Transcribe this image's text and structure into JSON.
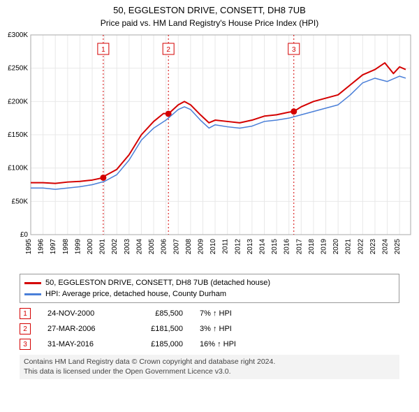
{
  "header": {
    "title": "50, EGGLESTON DRIVE, CONSETT, DH8 7UB",
    "subtitle": "Price paid vs. HM Land Registry's House Price Index (HPI)"
  },
  "chart": {
    "background_color": "#ffffff",
    "grid_color": "#e8e8e8",
    "border_color": "#aaaaaa",
    "axis_font_size": 10,
    "tick_font_size": 10,
    "xlim": [
      1995,
      2025.9
    ],
    "ylim": [
      0,
      300000
    ],
    "yticks": [
      0,
      50000,
      100000,
      150000,
      200000,
      250000,
      300000
    ],
    "ytick_labels": [
      "£0",
      "£50K",
      "£100K",
      "£150K",
      "£200K",
      "£250K",
      "£300K"
    ],
    "xticks": [
      1995,
      1996,
      1997,
      1998,
      1999,
      2000,
      2001,
      2002,
      2003,
      2004,
      2005,
      2006,
      2007,
      2008,
      2009,
      2010,
      2011,
      2012,
      2013,
      2014,
      2015,
      2016,
      2017,
      2018,
      2019,
      2020,
      2021,
      2022,
      2023,
      2024,
      2025
    ],
    "series": [
      {
        "name": "price_paid",
        "color": "#d40000",
        "width": 2,
        "data": [
          [
            1995,
            78000
          ],
          [
            1996,
            78000
          ],
          [
            1997,
            77000
          ],
          [
            1998,
            79000
          ],
          [
            1999,
            80000
          ],
          [
            2000,
            82000
          ],
          [
            2000.9,
            85500
          ],
          [
            2001,
            88000
          ],
          [
            2002,
            98000
          ],
          [
            2003,
            120000
          ],
          [
            2004,
            150000
          ],
          [
            2005,
            170000
          ],
          [
            2005.8,
            182000
          ],
          [
            2006.2,
            181500
          ],
          [
            2007,
            195000
          ],
          [
            2007.5,
            200000
          ],
          [
            2008,
            195000
          ],
          [
            2008.8,
            180000
          ],
          [
            2009.5,
            168000
          ],
          [
            2010,
            172000
          ],
          [
            2011,
            170000
          ],
          [
            2012,
            168000
          ],
          [
            2013,
            172000
          ],
          [
            2014,
            178000
          ],
          [
            2015,
            180000
          ],
          [
            2016,
            184000
          ],
          [
            2016.4,
            185000
          ],
          [
            2017,
            192000
          ],
          [
            2018,
            200000
          ],
          [
            2019,
            205000
          ],
          [
            2020,
            210000
          ],
          [
            2021,
            225000
          ],
          [
            2022,
            240000
          ],
          [
            2023,
            248000
          ],
          [
            2023.8,
            258000
          ],
          [
            2024.5,
            242000
          ],
          [
            2025,
            252000
          ],
          [
            2025.5,
            248000
          ]
        ]
      },
      {
        "name": "hpi",
        "color": "#4a7fd8",
        "width": 1.5,
        "data": [
          [
            1995,
            70000
          ],
          [
            1996,
            70000
          ],
          [
            1997,
            68000
          ],
          [
            1998,
            70000
          ],
          [
            1999,
            72000
          ],
          [
            2000,
            75000
          ],
          [
            2001,
            80000
          ],
          [
            2002,
            90000
          ],
          [
            2003,
            112000
          ],
          [
            2004,
            142000
          ],
          [
            2005,
            160000
          ],
          [
            2006,
            172000
          ],
          [
            2007,
            188000
          ],
          [
            2007.5,
            192000
          ],
          [
            2008,
            188000
          ],
          [
            2008.8,
            172000
          ],
          [
            2009.5,
            160000
          ],
          [
            2010,
            165000
          ],
          [
            2011,
            162000
          ],
          [
            2012,
            160000
          ],
          [
            2013,
            163000
          ],
          [
            2014,
            170000
          ],
          [
            2015,
            172000
          ],
          [
            2016,
            175000
          ],
          [
            2017,
            180000
          ],
          [
            2018,
            185000
          ],
          [
            2019,
            190000
          ],
          [
            2020,
            195000
          ],
          [
            2021,
            210000
          ],
          [
            2022,
            228000
          ],
          [
            2023,
            235000
          ],
          [
            2024,
            230000
          ],
          [
            2025,
            238000
          ],
          [
            2025.5,
            235000
          ]
        ]
      }
    ],
    "marker_lines": [
      {
        "label": "1",
        "x": 2000.9,
        "y": 85500,
        "color": "#d40000"
      },
      {
        "label": "2",
        "x": 2006.2,
        "y": 181500,
        "color": "#d40000"
      },
      {
        "label": "3",
        "x": 2016.4,
        "y": 185000,
        "color": "#d40000"
      }
    ],
    "marker_line_color": "#d40000",
    "marker_box_color": "#d40000",
    "marker_box_bg": "#ffffff",
    "marker_dot_color": "#d40000"
  },
  "legend": {
    "items": [
      {
        "label": "50, EGGLESTON DRIVE, CONSETT, DH8 7UB (detached house)",
        "color": "#d40000"
      },
      {
        "label": "HPI: Average price, detached house, County Durham",
        "color": "#4a7fd8"
      }
    ]
  },
  "marker_table": {
    "rows": [
      {
        "num": "1",
        "date": "24-NOV-2000",
        "price": "£85,500",
        "gain": "7% ↑ HPI"
      },
      {
        "num": "2",
        "date": "27-MAR-2006",
        "price": "£181,500",
        "gain": "3% ↑ HPI"
      },
      {
        "num": "3",
        "date": "31-MAY-2016",
        "price": "£185,000",
        "gain": "16% ↑ HPI"
      }
    ],
    "border_color": "#d40000"
  },
  "footer": {
    "line1": "Contains HM Land Registry data © Crown copyright and database right 2024.",
    "line2": "This data is licensed under the Open Government Licence v3.0."
  }
}
